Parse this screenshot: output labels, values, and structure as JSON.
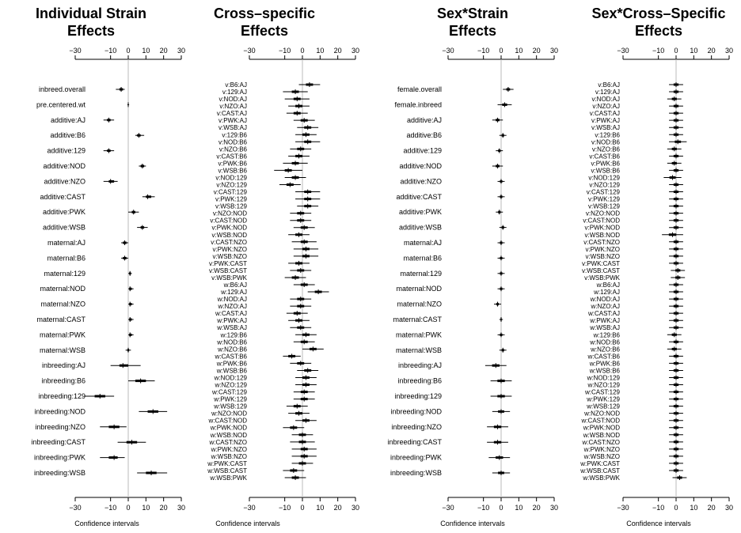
{
  "chart_data": [
    {
      "type": "forest",
      "title": [
        "Individual Strain",
        "Effects"
      ],
      "xlabel": "Confidence intervals",
      "xlim": [
        -30,
        30
      ],
      "ticks": [
        -30,
        -10,
        0,
        10,
        20,
        30
      ],
      "labels": [
        "inbreed.overall",
        "pre.centered.wt",
        "additive:AJ",
        "additive:B6",
        "additive:129",
        "additive:NOD",
        "additive:NZO",
        "additive:CAST",
        "additive:PWK",
        "additive:WSB",
        "maternal:AJ",
        "maternal:B6",
        "maternal:129",
        "maternal:NOD",
        "maternal:NZO",
        "maternal:CAST",
        "maternal:PWK",
        "maternal:WSB",
        "inbreeding:AJ",
        "inbreeding:B6",
        "inbreeding:129",
        "inbreeding:NOD",
        "inbreeding:NZO",
        "inbreeding:CAST",
        "inbreeding:PWK",
        "inbreeding:WSB"
      ],
      "est": [
        -4,
        0,
        -11,
        6,
        -11,
        8,
        -10,
        11,
        3,
        8,
        -2,
        -2,
        1,
        1,
        1,
        1,
        1,
        0,
        -3,
        7,
        -16,
        14,
        -8,
        2,
        -8,
        13
      ],
      "lo": [
        -7,
        -0.5,
        -14,
        4,
        -14,
        6,
        -14,
        8,
        0,
        5,
        -4,
        -4,
        0,
        0,
        0,
        0,
        0,
        -1.5,
        -10,
        0,
        -25,
        6,
        -16,
        -6,
        -16,
        5
      ],
      "hi": [
        -2,
        0.5,
        -8,
        9,
        -8,
        10,
        -6,
        15,
        6,
        11,
        0,
        0,
        2,
        3,
        3,
        3,
        3,
        1.5,
        7,
        15,
        -8,
        22,
        -1,
        10,
        -2,
        22
      ],
      "lo50": [
        -5,
        -0.2,
        -12,
        5,
        -12,
        7,
        -11,
        10,
        2,
        7,
        -3,
        -3,
        0.5,
        0.5,
        0.5,
        0.5,
        0.5,
        -0.5,
        -5,
        4,
        -19,
        11,
        -11,
        -1,
        -11,
        10
      ],
      "hi50": [
        -3,
        0.2,
        -10,
        7,
        -10,
        9,
        -8,
        13,
        4,
        9,
        -1,
        -1,
        1.5,
        2,
        2,
        2,
        2,
        0.5,
        0,
        10,
        -13,
        17,
        -5,
        5,
        -6,
        16
      ]
    },
    {
      "type": "forest",
      "title": [
        "Cross–specific",
        "Effects"
      ],
      "xlabel": "Confidence intervals",
      "xlim": [
        -30,
        30
      ],
      "ticks": [
        -30,
        -10,
        0,
        10,
        20,
        30
      ],
      "labels": [
        "v:B6:AJ",
        "v:129:AJ",
        "v:NOD:AJ",
        "v:NZO:AJ",
        "v:CAST:AJ",
        "v:PWK:AJ",
        "v:WSB:AJ",
        "v:129:B6",
        "v:NOD:B6",
        "v:NZO:B6",
        "v:CAST:B6",
        "v:PWK:B6",
        "v:WSB:B6",
        "v:NOD:129",
        "v:NZO:129",
        "v:CAST:129",
        "v:PWK:129",
        "v:WSB:129",
        "v:NZO:NOD",
        "v:CAST:NOD",
        "v:PWK:NOD",
        "v:WSB:NOD",
        "v:CAST:NZO",
        "v:PWK:NZO",
        "v:WSB:NZO",
        "v:PWK:CAST",
        "v:WSB:CAST",
        "v:WSB:PWK",
        "w:B6:AJ",
        "w:129:AJ",
        "w:NOD:AJ",
        "w:NZO:AJ",
        "w:CAST:AJ",
        "w:PWK:AJ",
        "w:WSB:AJ",
        "w:129:B6",
        "w:NOD:B6",
        "w:NZO:B6",
        "w:CAST:B6",
        "w:PWK:B6",
        "w:WSB:B6",
        "w:NOD:129",
        "w:NZO:129",
        "w:CAST:129",
        "w:PWK:129",
        "w:WSB:129",
        "w:NZO:NOD",
        "w:CAST:NOD",
        "w:PWK:NOD",
        "w:WSB:NOD",
        "w:CAST:NZO",
        "w:PWK:NZO",
        "w:WSB:NZO",
        "w:PWK:CAST",
        "w:WSB:CAST",
        "w:WSB:PWK"
      ],
      "est": [
        4,
        -4,
        -3,
        -2,
        -3,
        1,
        3,
        2,
        3,
        -1,
        -2,
        -4,
        -8,
        -4,
        -7,
        3,
        3,
        3,
        -1,
        -1,
        1,
        -2,
        1,
        2,
        2,
        -2,
        -1,
        -4,
        1,
        9,
        -1,
        -1,
        -3,
        -2,
        -1,
        2,
        1,
        6,
        -6,
        -1,
        3,
        2,
        2,
        1,
        1,
        -3,
        -2,
        2,
        -5,
        0,
        0,
        1,
        1,
        0,
        -5,
        -4
      ],
      "hi50": [
        6,
        -2,
        -1,
        0,
        -1,
        3,
        5,
        4,
        5,
        1,
        0,
        -2,
        -6,
        -2,
        -5,
        5,
        5,
        5,
        1,
        1,
        3,
        0,
        3,
        4,
        4,
        0,
        1,
        -2,
        3,
        11,
        1,
        1,
        -1,
        0,
        1,
        4,
        3,
        8,
        -4,
        1,
        5,
        4,
        4,
        3,
        3,
        -1,
        0,
        4,
        -3,
        2,
        2,
        3,
        3,
        2,
        -3,
        -2
      ],
      "w": [
        6,
        7,
        7,
        6,
        6,
        6,
        6,
        6,
        7,
        6,
        6,
        7,
        8,
        6,
        6,
        7,
        7,
        6,
        6,
        6,
        6,
        6,
        7,
        7,
        7,
        6,
        6,
        6,
        6,
        6,
        6,
        6,
        6,
        6,
        6,
        6,
        6,
        6,
        5,
        6,
        6,
        6,
        6,
        6,
        6,
        6,
        6,
        6,
        6,
        6,
        7,
        7,
        7,
        6,
        6,
        6
      ]
    },
    {
      "type": "forest",
      "title": [
        "Sex*Strain",
        "Effects"
      ],
      "xlabel": "Confidence intervals",
      "xlim": [
        -30,
        30
      ],
      "ticks": [
        -30,
        -10,
        0,
        10,
        20,
        30
      ],
      "labels": [
        "female.overall",
        "female.inbreed",
        "additive:AJ",
        "additive:B6",
        "additive:129",
        "additive:NOD",
        "additive:NZO",
        "additive:CAST",
        "additive:PWK",
        "additive:WSB",
        "maternal:AJ",
        "maternal:B6",
        "maternal:129",
        "maternal:NOD",
        "maternal:NZO",
        "maternal:CAST",
        "maternal:PWK",
        "maternal:WSB",
        "inbreeding:AJ",
        "inbreeding:B6",
        "inbreeding:129",
        "inbreeding:NOD",
        "inbreeding:NZO",
        "inbreeding:CAST",
        "inbreeding:PWK",
        "inbreeding:WSB"
      ],
      "est": [
        4,
        2,
        -2,
        1,
        -1,
        -2,
        0,
        0,
        -1,
        1,
        0,
        0,
        0,
        0,
        -2,
        0,
        0,
        1,
        -3,
        0,
        0,
        0,
        -2,
        -2,
        -1,
        0
      ],
      "w": [
        3,
        4,
        3,
        2,
        2,
        3,
        2,
        2,
        2,
        2,
        2,
        2,
        2,
        2,
        2,
        1,
        2,
        2,
        6,
        6,
        6,
        5,
        6,
        6,
        6,
        5
      ]
    },
    {
      "type": "forest",
      "title": [
        "Sex*Cross–Specific",
        "Effects"
      ],
      "xlabel": "Confidence intervals",
      "xlim": [
        -30,
        30
      ],
      "ticks": [
        -30,
        -10,
        0,
        10,
        20,
        30
      ],
      "labels": [
        "v:B6:AJ",
        "v:129:AJ",
        "v:NOD:AJ",
        "v:NZO:AJ",
        "v:CAST:AJ",
        "v:PWK:AJ",
        "v:WSB:AJ",
        "v:129:B6",
        "v:NOD:B6",
        "v:NZO:B6",
        "v:CAST:B6",
        "v:PWK:B6",
        "v:WSB:B6",
        "v:NOD:129",
        "v:NZO:129",
        "v:CAST:129",
        "v:PWK:129",
        "v:WSB:129",
        "v:NZO:NOD",
        "v:CAST:NOD",
        "v:PWK:NOD",
        "v:WSB:NOD",
        "v:CAST:NZO",
        "v:PWK:NZO",
        "v:WSB:NZO",
        "v:PWK:CAST",
        "v:WSB:CAST",
        "v:WSB:PWK",
        "w:B6:AJ",
        "w:129:AJ",
        "w:NOD:AJ",
        "w:NZO:AJ",
        "w:CAST:AJ",
        "w:PWK:AJ",
        "w:WSB:AJ",
        "w:129:B6",
        "w:NOD:B6",
        "w:NZO:B6",
        "w:CAST:B6",
        "w:PWK:B6",
        "w:WSB:B6",
        "w:NOD:129",
        "w:NZO:129",
        "w:CAST:129",
        "w:PWK:129",
        "w:WSB:129",
        "w:NZO:NOD",
        "w:CAST:NOD",
        "w:PWK:NOD",
        "w:WSB:NOD",
        "w:CAST:NZO",
        "w:PWK:NZO",
        "w:WSB:NZO",
        "w:PWK:CAST",
        "w:WSB:CAST",
        "w:WSB:PWK"
      ],
      "est": [
        0,
        0,
        -1,
        0,
        0,
        0,
        0,
        0,
        1,
        -1,
        0,
        -1,
        0,
        -2,
        0,
        0,
        0,
        0,
        0,
        0,
        0,
        -2,
        0,
        0,
        0,
        0,
        1,
        1,
        0,
        0,
        0,
        0,
        0,
        0,
        0,
        -1,
        0,
        -1,
        0,
        0,
        0,
        0,
        0,
        0,
        0,
        0,
        0,
        0,
        0,
        0,
        0,
        0,
        0,
        0,
        0,
        2
      ],
      "w": [
        4,
        4,
        4,
        4,
        4,
        4,
        4,
        4,
        5,
        4,
        4,
        4,
        4,
        5,
        4,
        4,
        4,
        4,
        4,
        4,
        4,
        6,
        4,
        4,
        4,
        4,
        4,
        4,
        4,
        4,
        4,
        4,
        4,
        4,
        4,
        4,
        4,
        4,
        4,
        4,
        4,
        4,
        4,
        4,
        4,
        4,
        4,
        4,
        4,
        4,
        4,
        4,
        4,
        4,
        4,
        4
      ]
    }
  ]
}
